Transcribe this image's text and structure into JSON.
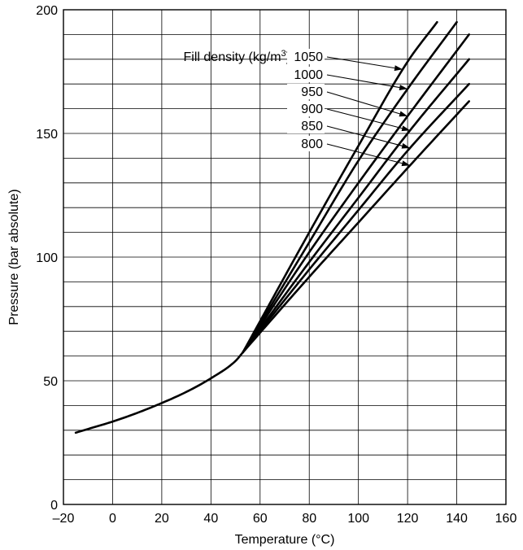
{
  "chart_data": {
    "type": "line",
    "xlabel": "Temperature (°C)",
    "ylabel": "Pressure (bar absolute)",
    "xlim": [
      -20,
      160
    ],
    "ylim": [
      0,
      200
    ],
    "x_ticks": [
      -20,
      0,
      20,
      40,
      60,
      80,
      100,
      120,
      140,
      160
    ],
    "x_tick_labels": [
      "–20",
      "0",
      "20",
      "40",
      "60",
      "80",
      "100",
      "120",
      "140",
      "160"
    ],
    "y_ticks": [
      0,
      50,
      100,
      150,
      200
    ],
    "y_tick_labels": [
      "0",
      "50",
      "100",
      "150",
      "200"
    ],
    "grid": true,
    "grid_x_step": 20,
    "grid_y_step": 10,
    "legend_title": "Fill density (kg/m",
    "legend_title_sup": "3",
    "legend_title_close": ")",
    "common_curve": {
      "name": "",
      "x": [
        -15,
        -10,
        0,
        10,
        20,
        30,
        40,
        50,
        53
      ],
      "y": [
        29,
        30.5,
        33.5,
        37,
        41,
        45.5,
        51,
        58,
        61.5
      ]
    },
    "series": [
      {
        "name": "1050",
        "x": [
          53,
          80,
          100,
          120,
          132
        ],
        "y": [
          61.5,
          110,
          145,
          179,
          195
        ],
        "arrow_to_x": 118
      },
      {
        "name": "1000",
        "x": [
          53,
          80,
          100,
          120,
          140
        ],
        "y": [
          61.5,
          106,
          139,
          168,
          195
        ],
        "arrow_to_x": 120
      },
      {
        "name": "950",
        "x": [
          53,
          80,
          100,
          120,
          145
        ],
        "y": [
          61.5,
          102,
          130,
          157,
          190
        ],
        "arrow_to_x": 120
      },
      {
        "name": "900",
        "x": [
          53,
          80,
          100,
          120,
          145
        ],
        "y": [
          61.5,
          98,
          124,
          150,
          180
        ],
        "arrow_to_x": 121
      },
      {
        "name": "850",
        "x": [
          53,
          80,
          100,
          120,
          145
        ],
        "y": [
          61.5,
          95,
          119,
          143,
          170
        ],
        "arrow_to_x": 121
      },
      {
        "name": "800",
        "x": [
          53,
          80,
          100,
          120,
          145
        ],
        "y": [
          61.5,
          92,
          114,
          136,
          163
        ],
        "arrow_to_x": 121
      }
    ]
  }
}
